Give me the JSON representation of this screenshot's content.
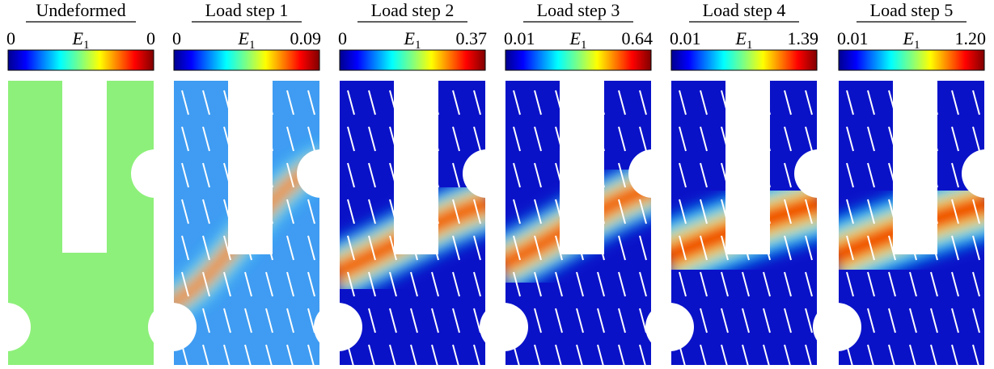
{
  "figure": {
    "colorbar_symbol": "E",
    "colorbar_subscript": "1",
    "panels": [
      {
        "title": "Undeformed",
        "min": "0",
        "max": "0"
      },
      {
        "title": "Load step 1",
        "min": "0",
        "max": "0.09"
      },
      {
        "title": "Load step 2",
        "min": "0",
        "max": "0.37"
      },
      {
        "title": "Load step 3",
        "min": "0.01",
        "max": "0.64"
      },
      {
        "title": "Load step 4",
        "min": "0.01",
        "max": "1.39"
      },
      {
        "title": "Load step 5",
        "min": "0.01",
        "max": "1.20"
      }
    ]
  }
}
